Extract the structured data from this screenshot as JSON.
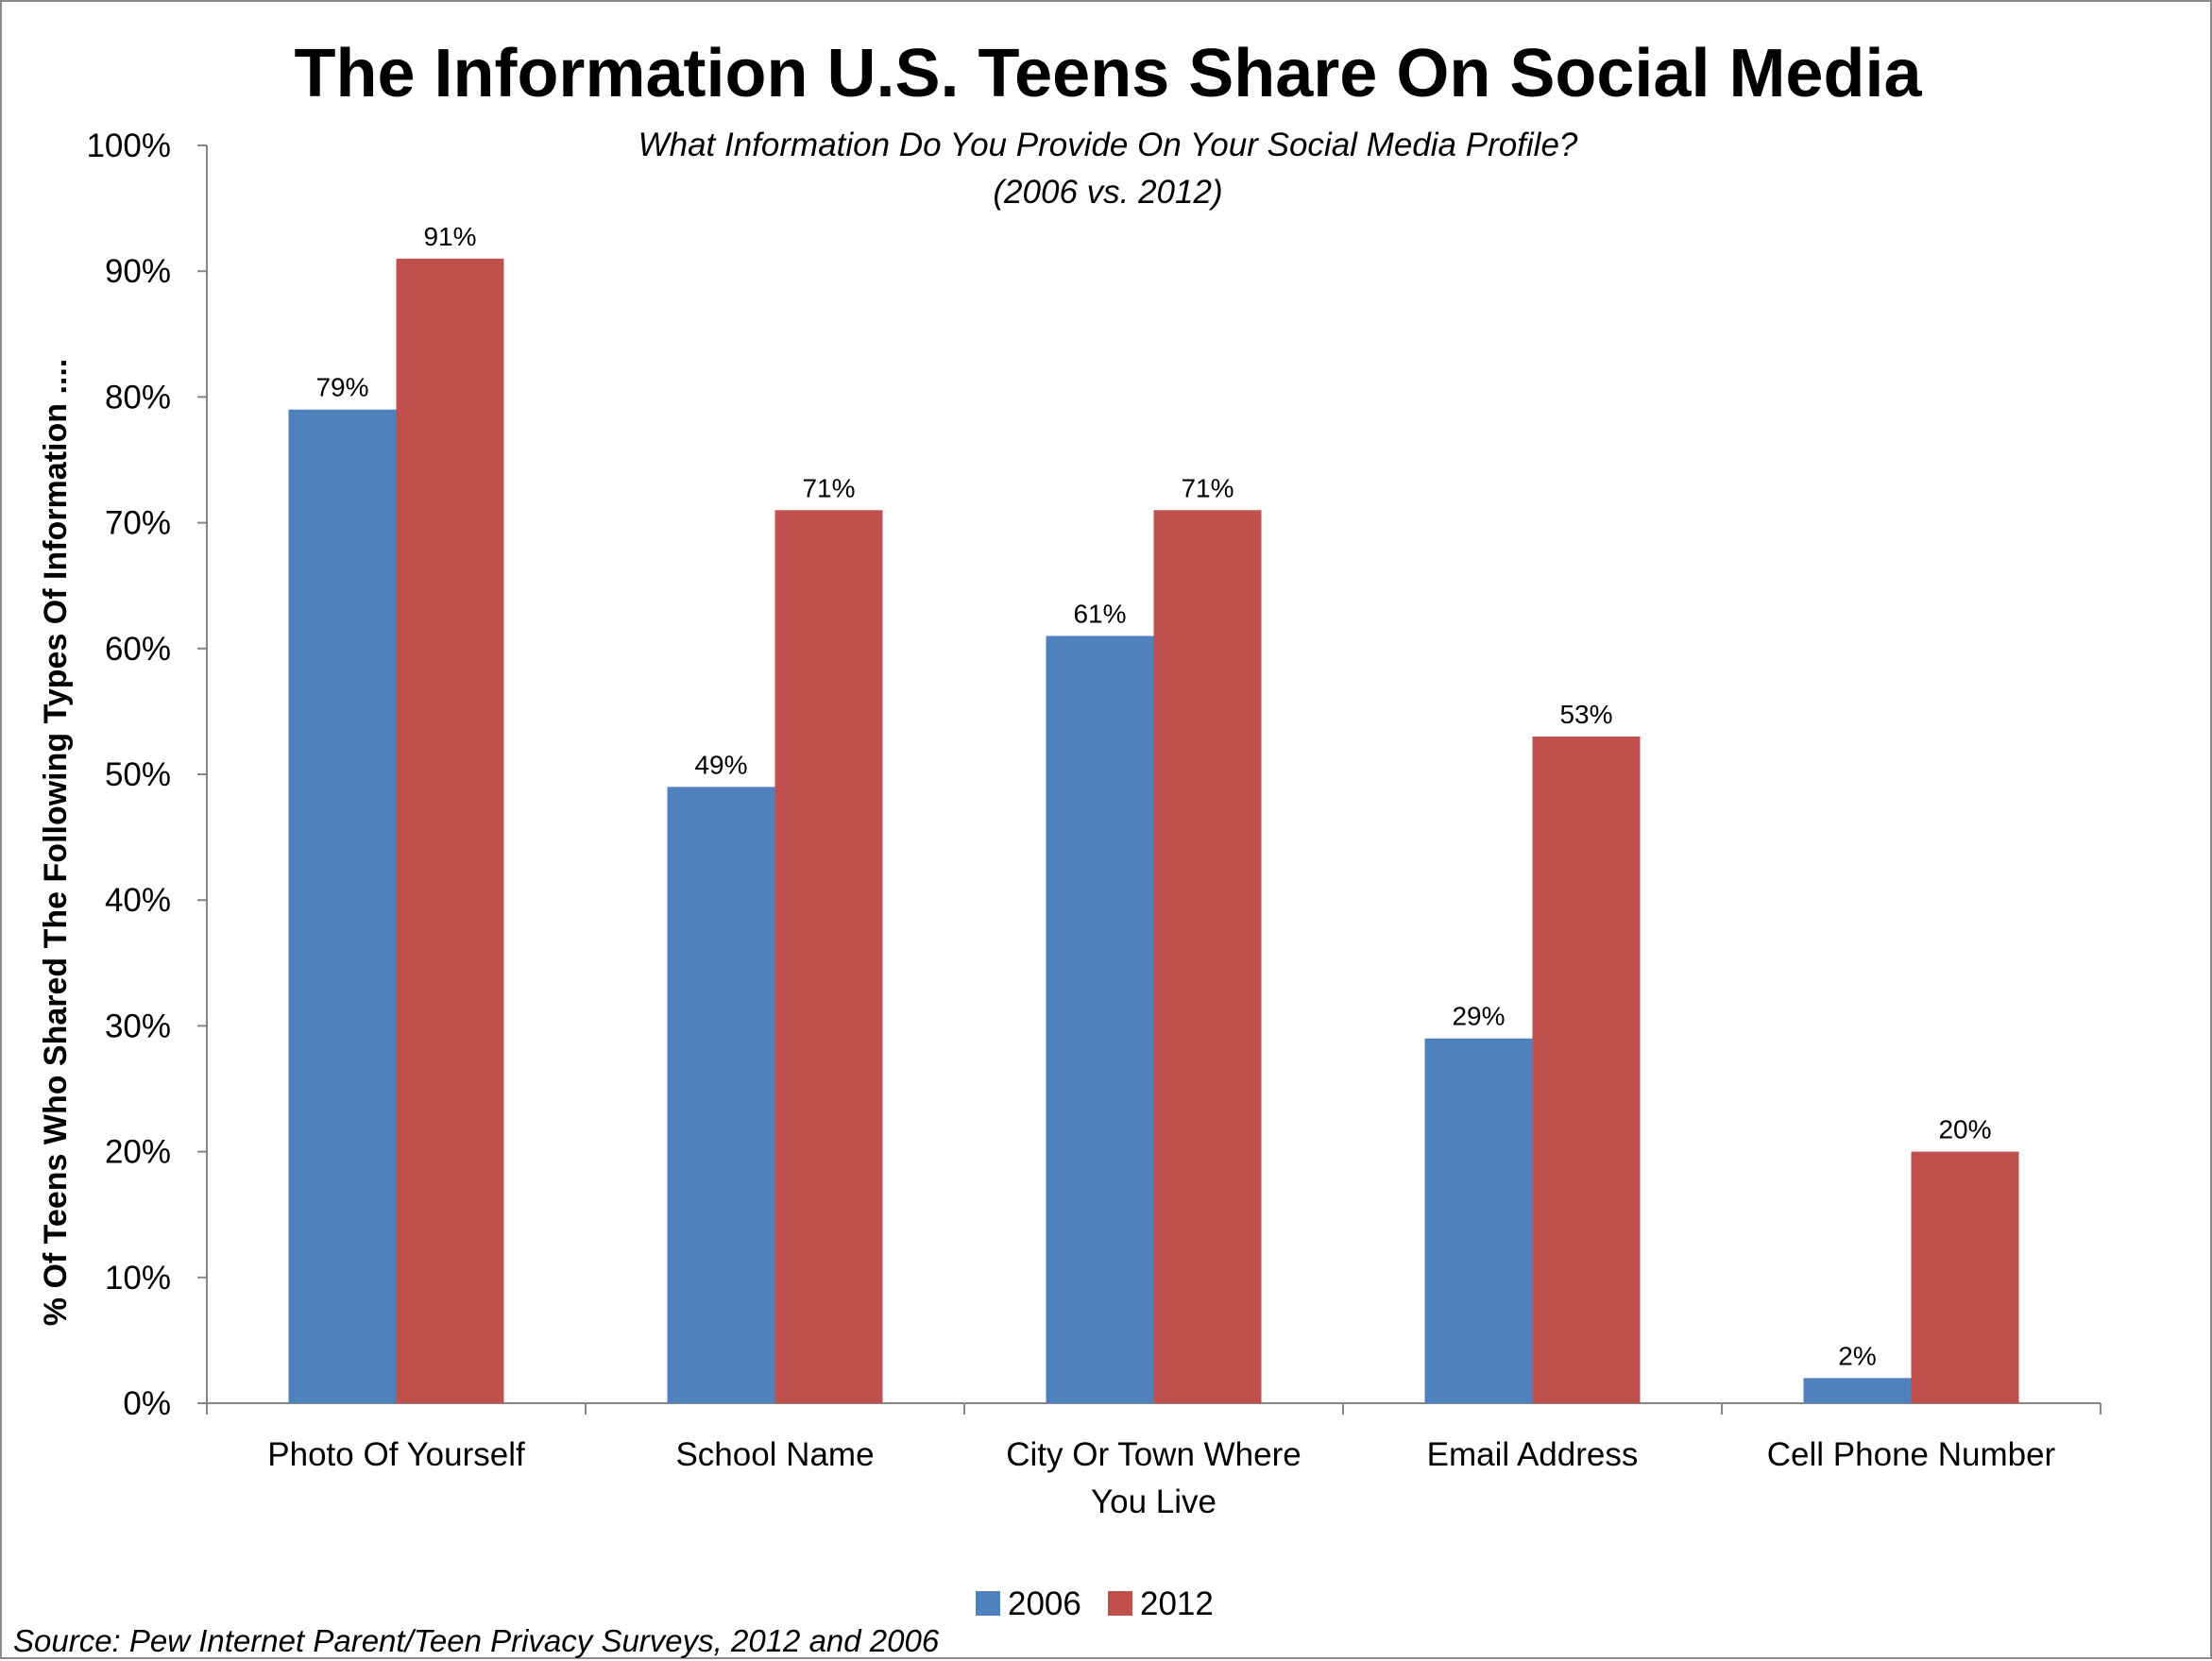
{
  "chart_data": {
    "type": "bar",
    "title": "The Information U.S. Teens Share On Social Media",
    "subtitle_lines": [
      "What Information Do You Provide On Your Social Media Profile?",
      "(2006 vs. 2012)"
    ],
    "ylabel": "% Of Teens Who Shared The Following Types Of Information ....",
    "xlabel": "",
    "categories": [
      [
        "Photo Of Yourself"
      ],
      [
        "School Name"
      ],
      [
        "City Or Town Where",
        "You Live"
      ],
      [
        "Email Address"
      ],
      [
        "Cell Phone Number"
      ]
    ],
    "series": [
      {
        "name": "2006",
        "color": "#4F81BD",
        "values": [
          79,
          49,
          61,
          29,
          2
        ]
      },
      {
        "name": "2012",
        "color": "#C0504D",
        "values": [
          91,
          71,
          71,
          53,
          20
        ]
      }
    ],
    "ylim": [
      0,
      100
    ],
    "yticks": [
      0,
      10,
      20,
      30,
      40,
      50,
      60,
      70,
      80,
      90,
      100
    ],
    "ytick_format": "{v}%",
    "data_label_format": "{v}%",
    "grid": false,
    "legend_position": "bottom-center",
    "source": "Source: Pew Internet Parent/Teen Privacy Surveys, 2012 and 2006"
  }
}
